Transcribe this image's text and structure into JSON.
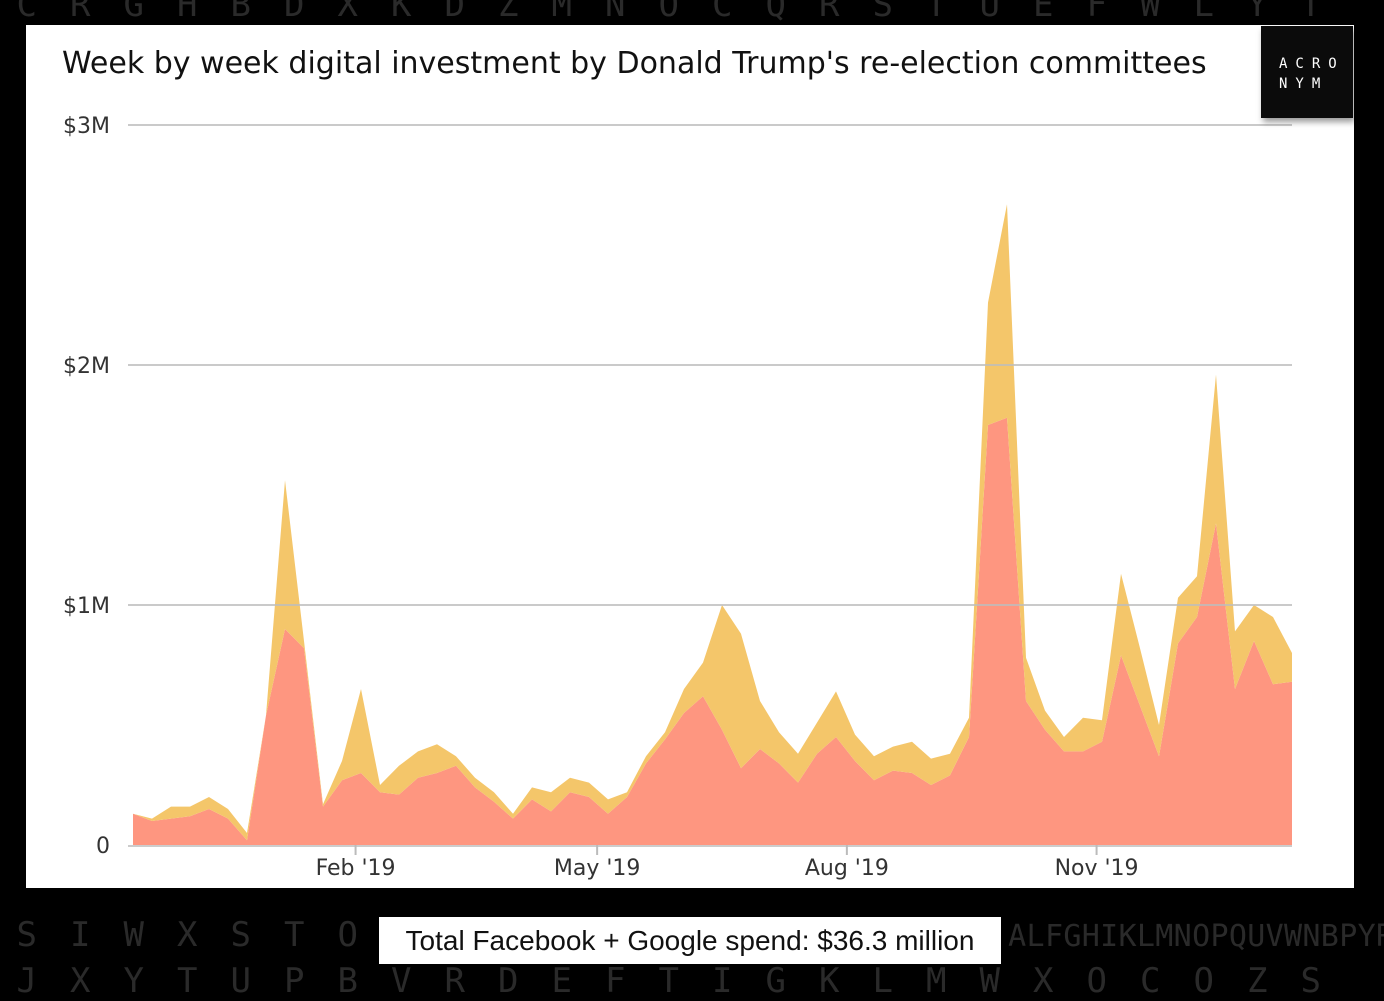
{
  "background_letters": {
    "top": "C R G H B D X K D Z M N O C Q R S T U E F W L Y T",
    "middle": "S I W X S T O A L F G H I K L M N O P Q U V W N B P Y R",
    "bottom": "J X Y T U P B V R D E F T I G K L M W X O C O Z S"
  },
  "logo": {
    "line1": "ACRO",
    "line2": "NYM"
  },
  "caption": "Total Facebook + Google spend: $36.3 million",
  "colors": {
    "series_bottom": "#fe9680",
    "series_top": "#f4c66a",
    "grid": "#bdbdbd"
  },
  "chart_data": {
    "type": "area",
    "stacked": true,
    "title": "Week by week digital investment by Donald Trump's re-election committees",
    "xlabel": "",
    "ylabel": "",
    "ylim": [
      0,
      3
    ],
    "y_ticks": [
      {
        "value": 0,
        "label": "0"
      },
      {
        "value": 1,
        "label": "$1M"
      },
      {
        "value": 2,
        "label": "$2M"
      },
      {
        "value": 3,
        "label": "$3M"
      }
    ],
    "x_ticks": [
      {
        "date": "2019-02-01",
        "label": "Feb '19"
      },
      {
        "date": "2019-05-01",
        "label": "May '19"
      },
      {
        "date": "2019-08-01",
        "label": "Aug '19"
      },
      {
        "date": "2019-11-01",
        "label": "Nov '19"
      }
    ],
    "grid": true,
    "legend": "none",
    "units": "millions USD",
    "x": [
      "2018-11-11",
      "2018-11-18",
      "2018-11-25",
      "2018-12-02",
      "2018-12-09",
      "2018-12-16",
      "2018-12-23",
      "2018-12-30",
      "2019-01-06",
      "2019-01-13",
      "2019-01-20",
      "2019-01-27",
      "2019-02-03",
      "2019-02-10",
      "2019-02-17",
      "2019-02-24",
      "2019-03-03",
      "2019-03-10",
      "2019-03-17",
      "2019-03-24",
      "2019-03-31",
      "2019-04-07",
      "2019-04-14",
      "2019-04-21",
      "2019-04-28",
      "2019-05-05",
      "2019-05-12",
      "2019-05-19",
      "2019-05-26",
      "2019-06-02",
      "2019-06-09",
      "2019-06-16",
      "2019-06-23",
      "2019-06-30",
      "2019-07-07",
      "2019-07-14",
      "2019-07-21",
      "2019-07-28",
      "2019-08-04",
      "2019-08-11",
      "2019-08-18",
      "2019-08-25",
      "2019-09-01",
      "2019-09-08",
      "2019-09-15",
      "2019-09-22",
      "2019-09-29",
      "2019-10-06",
      "2019-10-13",
      "2019-10-20",
      "2019-10-27",
      "2019-11-03",
      "2019-11-10",
      "2019-11-17",
      "2019-11-24",
      "2019-12-01",
      "2019-12-08",
      "2019-12-15",
      "2019-12-22",
      "2019-12-29",
      "2020-01-05",
      "2020-01-12"
    ],
    "series": [
      {
        "color": "#fe9680",
        "values": [
          0.13,
          0.1,
          0.11,
          0.12,
          0.15,
          0.11,
          0.02,
          0.54,
          0.9,
          0.82,
          0.16,
          0.27,
          0.3,
          0.22,
          0.21,
          0.28,
          0.3,
          0.33,
          0.24,
          0.18,
          0.11,
          0.19,
          0.14,
          0.22,
          0.2,
          0.13,
          0.2,
          0.34,
          0.44,
          0.55,
          0.62,
          0.48,
          0.32,
          0.4,
          0.34,
          0.26,
          0.38,
          0.45,
          0.35,
          0.27,
          0.31,
          0.3,
          0.25,
          0.29,
          0.45,
          1.75,
          1.78,
          0.6,
          0.48,
          0.39,
          0.39,
          0.43,
          0.79,
          0.58,
          0.37,
          0.84,
          0.95,
          1.34,
          0.65,
          0.85,
          0.67,
          0.68
        ]
      },
      {
        "color": "#f4c66a",
        "values": [
          0.0,
          0.01,
          0.05,
          0.04,
          0.05,
          0.04,
          0.03,
          0.0,
          0.62,
          0.03,
          0.01,
          0.08,
          0.35,
          0.03,
          0.12,
          0.11,
          0.12,
          0.04,
          0.04,
          0.04,
          0.02,
          0.05,
          0.08,
          0.06,
          0.06,
          0.06,
          0.02,
          0.03,
          0.03,
          0.1,
          0.14,
          0.52,
          0.56,
          0.2,
          0.13,
          0.12,
          0.13,
          0.19,
          0.11,
          0.1,
          0.1,
          0.13,
          0.11,
          0.09,
          0.08,
          0.51,
          0.89,
          0.18,
          0.08,
          0.06,
          0.14,
          0.09,
          0.34,
          0.24,
          0.13,
          0.19,
          0.17,
          0.62,
          0.24,
          0.15,
          0.28,
          0.12
        ]
      }
    ]
  }
}
